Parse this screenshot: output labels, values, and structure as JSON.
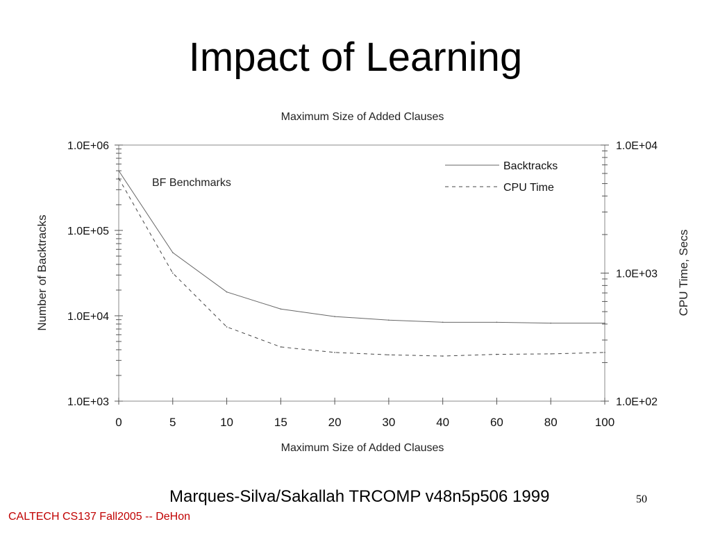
{
  "slide": {
    "title": "Impact of Learning",
    "citation": "Marques-Silva/Sakallah TRCOMP v48n5p506 1999",
    "page_number": "50",
    "footer": "CALTECH CS137 Fall2005 -- DeHon"
  },
  "colors": {
    "footer_text": "#c00000",
    "axis": "#000000",
    "backtracks_line": "#666666",
    "cpu_line": "#444444"
  },
  "chart_data": {
    "type": "line",
    "title": "Maximum Size of Added Clauses",
    "xlabel": "Maximum Size of Added Clauses",
    "ylabel": "Number of Backtracks",
    "y2label": "CPU Time, Secs",
    "annotation": "BF Benchmarks",
    "categories": [
      "0",
      "5",
      "10",
      "15",
      "20",
      "30",
      "40",
      "60",
      "80",
      "100"
    ],
    "y_scale": "log",
    "ylim": [
      1000,
      1000000
    ],
    "y_ticks": [
      "1.0E+03",
      "1.0E+04",
      "1.0E+05",
      "1.0E+06"
    ],
    "y2_scale": "log",
    "y2lim": [
      100,
      10000
    ],
    "y2_ticks": [
      "1.0E+02",
      "1.0E+03",
      "1.0E+04"
    ],
    "legend_position": "top-right",
    "grid": false,
    "series": [
      {
        "name": "Backtracks",
        "axis": "left",
        "style": "solid",
        "values": [
          500000,
          55000,
          19000,
          12000,
          9800,
          8900,
          8400,
          8400,
          8200,
          8200
        ]
      },
      {
        "name": "CPU Time",
        "axis": "right",
        "style": "dashed",
        "values": [
          5500,
          1000,
          380,
          265,
          240,
          230,
          225,
          232,
          234,
          240
        ]
      }
    ]
  }
}
